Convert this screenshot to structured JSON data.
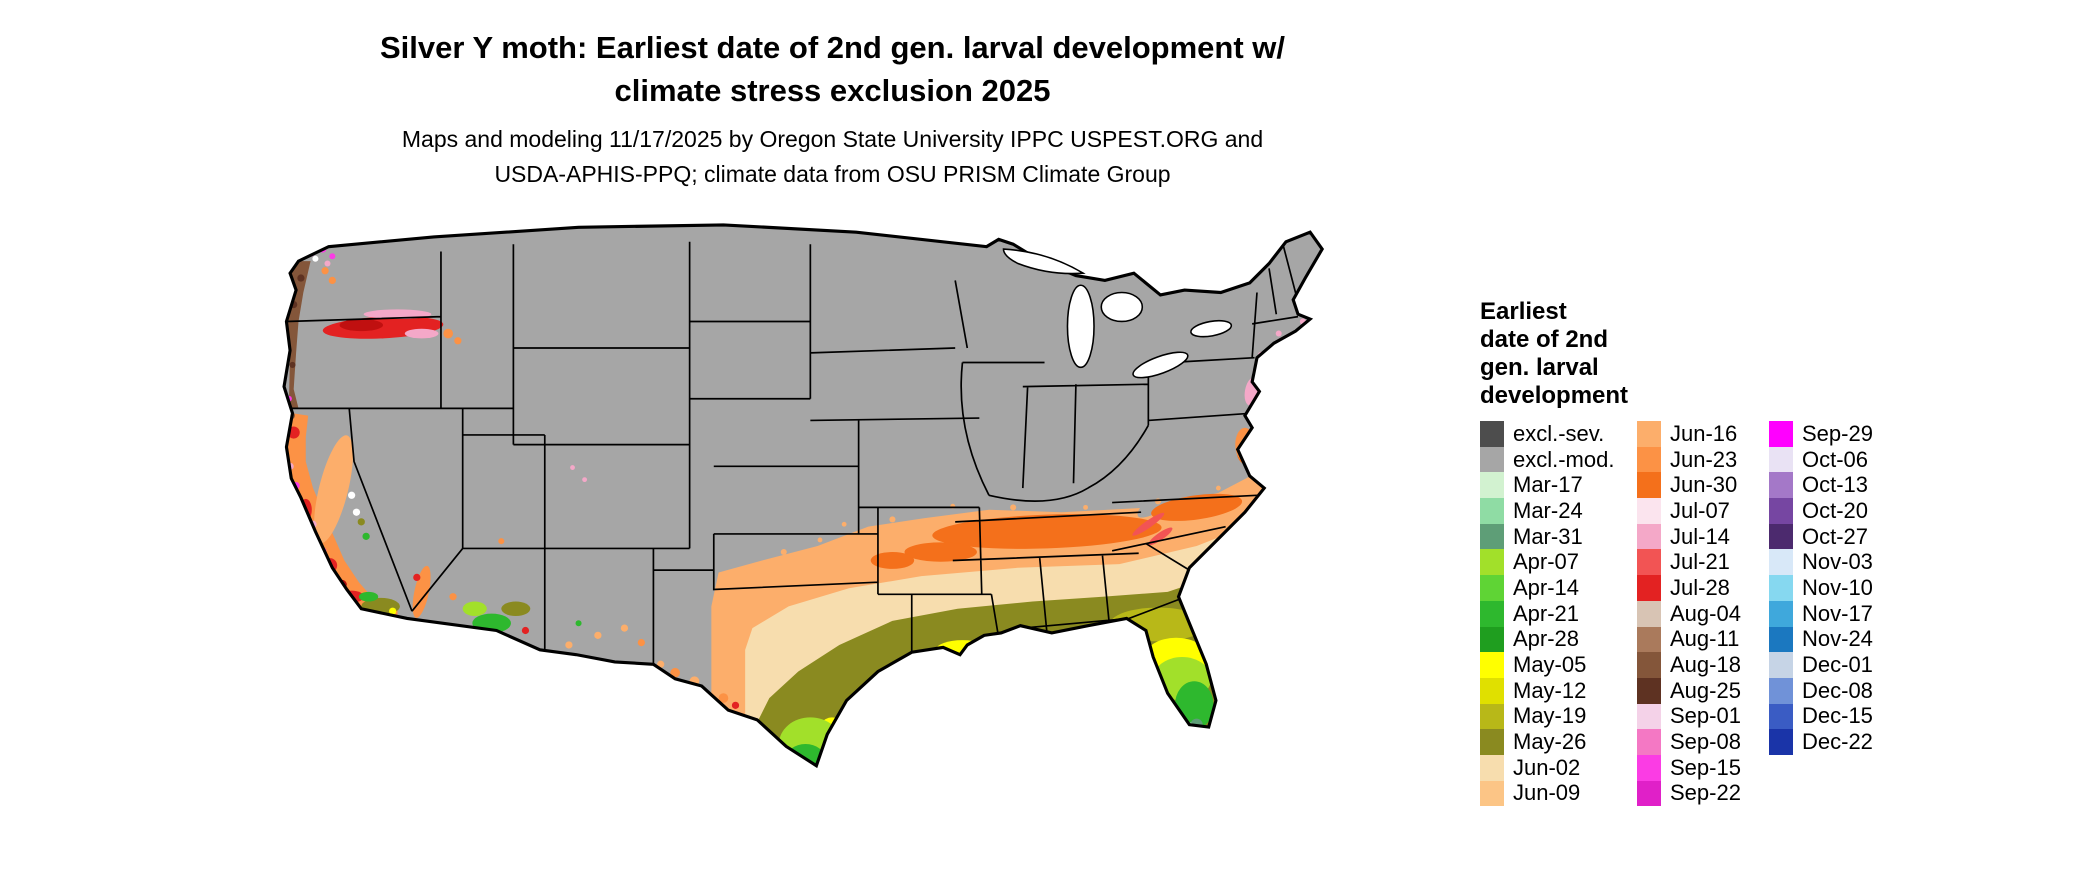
{
  "header": {
    "title": "Silver Y moth: Earliest date of 2nd gen. larval development w/\nclimate stress exclusion 2025",
    "subtitle": "Maps and modeling 11/17/2025 by Oregon State University IPPC USPEST.ORG and\nUSDA-APHIS-PPQ; climate data from OSU PRISM Climate Group"
  },
  "legend": {
    "title": "Earliest\ndate of 2nd\ngen. larval\ndevelopment",
    "columns": [
      [
        {
          "label": "excl.-sev.",
          "color": "#4d4d4d"
        },
        {
          "label": "excl.-mod.",
          "color": "#a6a6a6"
        },
        {
          "label": "Mar-17",
          "color": "#d2f2d0"
        },
        {
          "label": "Mar-24",
          "color": "#8fdca4"
        },
        {
          "label": "Mar-31",
          "color": "#5e9e77"
        },
        {
          "label": "Apr-07",
          "color": "#a2e02a"
        },
        {
          "label": "Apr-14",
          "color": "#5fd435"
        },
        {
          "label": "Apr-21",
          "color": "#2eb82e"
        },
        {
          "label": "Apr-28",
          "color": "#1f9e1f"
        },
        {
          "label": "May-05",
          "color": "#ffff00"
        },
        {
          "label": "May-12",
          "color": "#e0e000"
        },
        {
          "label": "May-19",
          "color": "#b8b818"
        },
        {
          "label": "May-26",
          "color": "#8a8a20"
        },
        {
          "label": "Jun-02",
          "color": "#f7ddae"
        },
        {
          "label": "Jun-09",
          "color": "#fcc586"
        }
      ],
      [
        {
          "label": "Jun-16",
          "color": "#fcae6b"
        },
        {
          "label": "Jun-23",
          "color": "#fc9245"
        },
        {
          "label": "Jun-30",
          "color": "#f4701b"
        },
        {
          "label": "Jul-07",
          "color": "#fbe4ee"
        },
        {
          "label": "Jul-14",
          "color": "#f4a8c8"
        },
        {
          "label": "Jul-21",
          "color": "#f25454"
        },
        {
          "label": "Jul-28",
          "color": "#e32222"
        },
        {
          "label": "Aug-04",
          "color": "#d8c4b4"
        },
        {
          "label": "Aug-11",
          "color": "#aa7a5c"
        },
        {
          "label": "Aug-18",
          "color": "#84563a"
        },
        {
          "label": "Aug-25",
          "color": "#5e3222"
        },
        {
          "label": "Sep-01",
          "color": "#f4d2e8"
        },
        {
          "label": "Sep-08",
          "color": "#f478c4"
        },
        {
          "label": "Sep-15",
          "color": "#fb3ce4"
        },
        {
          "label": "Sep-22",
          "color": "#e020c8"
        }
      ],
      [
        {
          "label": "Sep-29",
          "color": "#ff00ff"
        },
        {
          "label": "Oct-06",
          "color": "#e9e2f4"
        },
        {
          "label": "Oct-13",
          "color": "#a478c8"
        },
        {
          "label": "Oct-20",
          "color": "#7646a2"
        },
        {
          "label": "Oct-27",
          "color": "#4c2a6e"
        },
        {
          "label": "Nov-03",
          "color": "#d8e8f8"
        },
        {
          "label": "Nov-10",
          "color": "#86d8f0"
        },
        {
          "label": "Nov-17",
          "color": "#3fa8dc"
        },
        {
          "label": "Nov-24",
          "color": "#1b78c0"
        },
        {
          "label": "Dec-01",
          "color": "#c6d4e6"
        },
        {
          "label": "Dec-08",
          "color": "#7092d8"
        },
        {
          "label": "Dec-15",
          "color": "#3a5cc4"
        },
        {
          "label": "Dec-22",
          "color": "#1a34a8"
        }
      ]
    ]
  }
}
